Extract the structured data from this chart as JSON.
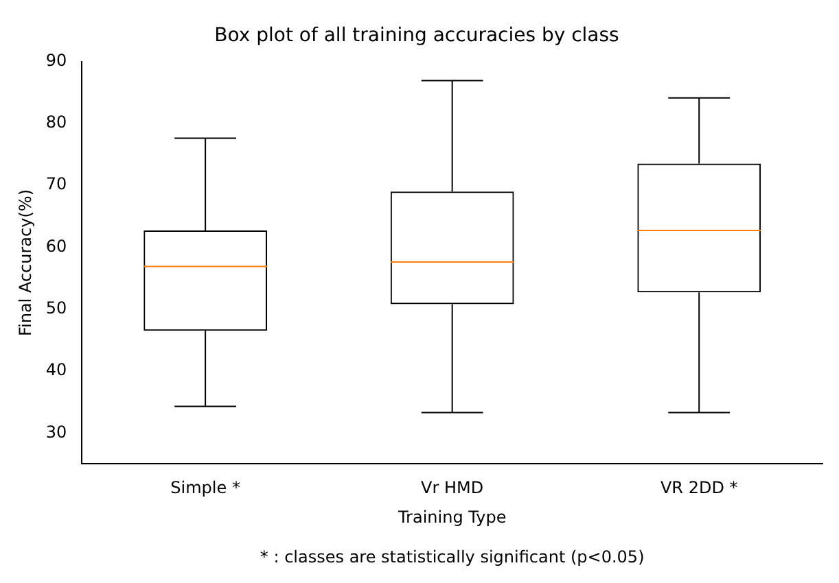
{
  "chart_data": {
    "type": "box",
    "title": "Box plot of all training accuracies by class",
    "xlabel": "Training Type",
    "ylabel": "Final Accuracy(%)",
    "categories": [
      "Simple *",
      "Vr HMD",
      "VR 2DD *"
    ],
    "boxes": [
      {
        "low": 34.3,
        "q1": 46.5,
        "median": 56.9,
        "q3": 62.7,
        "high": 77.6
      },
      {
        "low": 33.3,
        "q1": 50.8,
        "median": 57.6,
        "q3": 69.0,
        "high": 86.9
      },
      {
        "low": 33.3,
        "q1": 52.7,
        "median": 62.7,
        "q3": 73.5,
        "high": 84.1
      }
    ],
    "color": "#000000",
    "ylim": [
      25,
      90
    ],
    "yticks": [
      30,
      40,
      50,
      60,
      70,
      80,
      90
    ],
    "grid": false,
    "legend": false,
    "annotations": [
      "* : classes are statistically significant (p<0.05)"
    ]
  }
}
